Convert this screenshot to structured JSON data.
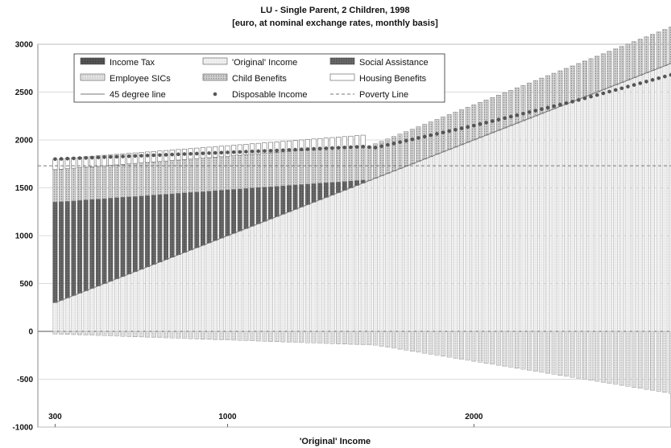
{
  "chart_data": {
    "type": "bar",
    "title": "LU - Single Parent, 2 Children, 1998",
    "subtitle": "[euro, at nominal exchange rates, monthly basis]",
    "xlabel": "'Original' Income",
    "ylabel": "",
    "ylim": [
      -1000,
      3000
    ],
    "xlim": [
      230,
      2800
    ],
    "yticks": [
      "3000",
      "2500",
      "2000",
      "1500",
      "1000",
      "500",
      "0",
      "-500",
      "-1000"
    ],
    "xticks": [
      {
        "value": 300,
        "label": "300"
      },
      {
        "value": 1000,
        "label": "1000"
      },
      {
        "value": 2000,
        "label": "2000"
      }
    ],
    "grid": true,
    "legend_position": "top-left",
    "legend": [
      {
        "key": "income_tax",
        "label": "Income Tax"
      },
      {
        "key": "original_income",
        "label": "'Original' Income"
      },
      {
        "key": "social_assistance",
        "label": "Social Assistance"
      },
      {
        "key": "employee_sics",
        "label": "Employee SICs"
      },
      {
        "key": "child_benefits",
        "label": "Child Benefits"
      },
      {
        "key": "housing_benefits",
        "label": "Housing Benefits"
      },
      {
        "key": "line_45",
        "label": "45 degree line"
      },
      {
        "key": "disposable_income",
        "label": "Disposable Income"
      },
      {
        "key": "poverty_line",
        "label": "Poverty Line"
      }
    ],
    "bars": {
      "x_start": 300,
      "x_end": 2800,
      "x_step": 25,
      "social_assistance": {
        "until_x": 1550,
        "top_at_start": 1350,
        "top_at_end": 1580
      },
      "child_benefits": {
        "amount_at_start": 340,
        "amount_at_end": 380
      },
      "housing_benefits": {
        "amount_at_start": 110,
        "amount_at_end": 110,
        "until_x": 1550
      },
      "employee_sics": {
        "share_of_original_income": 0.09
      },
      "income_tax": {
        "from_x": 1600,
        "share_of_excess": 0.33,
        "threshold": 1600
      }
    },
    "series": [
      {
        "name": "Disposable Income",
        "x": [
          300,
          800,
          1200,
          1550,
          1600,
          2000,
          2400,
          2800
        ],
        "y": [
          1800,
          1850,
          1890,
          1930,
          1920,
          2150,
          2400,
          2680
        ]
      },
      {
        "name": "45 degree line",
        "x": [
          300,
          2800
        ],
        "y": [
          300,
          2800
        ]
      }
    ],
    "poverty_line": 1730,
    "colors": {
      "income_tax": "#555555",
      "original_income": "#f4f4f4",
      "social_assistance": "#6e6e6e",
      "employee_sics": "#d8d8d8",
      "child_benefits": "#c8c8c8",
      "housing_benefits": "#ffffff",
      "disposable_income": "#555555",
      "line_45": "#777777",
      "poverty_line": "#777777"
    }
  }
}
